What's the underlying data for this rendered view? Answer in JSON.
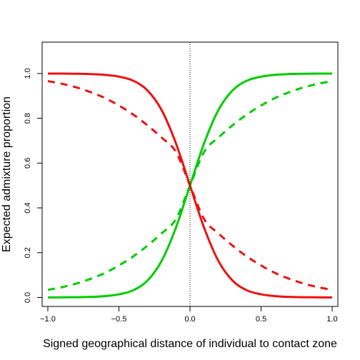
{
  "chart_data": {
    "type": "line",
    "title": "",
    "xlabel": "Signed geographical distance of individual to contact zone",
    "ylabel": "Expected admixture proportion",
    "xlim": [
      -1.04,
      1.04
    ],
    "ylim": [
      -0.04,
      1.14
    ],
    "xticks": [
      -1.0,
      -0.5,
      0.0,
      0.5,
      1.0
    ],
    "xtick_labels": [
      "−1.0",
      "−0.5",
      "0.0",
      "0.5",
      "1.0"
    ],
    "yticks": [
      0.0,
      0.2,
      0.4,
      0.6,
      0.8,
      1.0
    ],
    "ytick_labels": [
      "0.0",
      "0.2",
      "0.4",
      "0.6",
      "0.8",
      "1.0"
    ],
    "grid": false,
    "legend": "none",
    "reference_line": {
      "x": 0,
      "style": "dotted",
      "color": "#000000"
    },
    "series": [
      {
        "color": "#00cc00",
        "dash": "solid",
        "x": [
          -1.0,
          -0.9,
          -0.8,
          -0.7,
          -0.6,
          -0.5,
          -0.4,
          -0.3,
          -0.2,
          -0.1,
          0.0,
          0.1,
          0.2,
          0.3,
          0.4,
          0.5,
          0.6,
          0.7,
          0.8,
          0.9,
          1.0
        ],
        "y": [
          0.0002,
          0.0005,
          0.0011,
          0.0025,
          0.006,
          0.014,
          0.032,
          0.075,
          0.163,
          0.31,
          0.5,
          0.69,
          0.837,
          0.925,
          0.968,
          0.986,
          0.994,
          0.9975,
          0.9989,
          0.9995,
          0.9998
        ]
      },
      {
        "color": "#ee1111",
        "dash": "solid",
        "x": [
          -1.0,
          -0.9,
          -0.8,
          -0.7,
          -0.6,
          -0.5,
          -0.4,
          -0.3,
          -0.2,
          -0.1,
          0.0,
          0.1,
          0.2,
          0.3,
          0.4,
          0.5,
          0.6,
          0.7,
          0.8,
          0.9,
          1.0
        ],
        "y": [
          0.9998,
          0.9995,
          0.9989,
          0.9975,
          0.994,
          0.986,
          0.968,
          0.925,
          0.837,
          0.69,
          0.5,
          0.31,
          0.163,
          0.075,
          0.032,
          0.014,
          0.006,
          0.0025,
          0.0011,
          0.0005,
          0.0002
        ]
      },
      {
        "color": "#00cc00",
        "dash": "dashed",
        "x": [
          -1.0,
          -0.9,
          -0.8,
          -0.7,
          -0.6,
          -0.5,
          -0.4,
          -0.3,
          -0.2,
          -0.1,
          0.0,
          0.1,
          0.2,
          0.3,
          0.4,
          0.5,
          0.6,
          0.7,
          0.8,
          0.9,
          1.0
        ],
        "y": [
          0.034,
          0.046,
          0.062,
          0.083,
          0.109,
          0.143,
          0.183,
          0.231,
          0.286,
          0.349,
          0.5,
          0.651,
          0.714,
          0.769,
          0.817,
          0.857,
          0.891,
          0.917,
          0.938,
          0.954,
          0.966
        ]
      },
      {
        "color": "#ee1111",
        "dash": "dashed",
        "x": [
          -1.0,
          -0.9,
          -0.8,
          -0.7,
          -0.6,
          -0.5,
          -0.4,
          -0.3,
          -0.2,
          -0.1,
          0.0,
          0.1,
          0.2,
          0.3,
          0.4,
          0.5,
          0.6,
          0.7,
          0.8,
          0.9,
          1.0
        ],
        "y": [
          0.966,
          0.954,
          0.938,
          0.917,
          0.891,
          0.857,
          0.817,
          0.769,
          0.714,
          0.651,
          0.5,
          0.349,
          0.286,
          0.231,
          0.183,
          0.143,
          0.109,
          0.083,
          0.062,
          0.046,
          0.034
        ]
      }
    ]
  }
}
